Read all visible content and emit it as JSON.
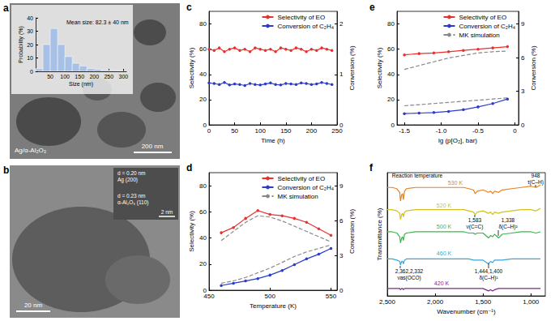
{
  "chart_data": [
    {
      "type": "histogram",
      "title": "Mean size: 82.3 ± 40 nm",
      "x_label": "Size (nm)",
      "y_label": "Probability (%)",
      "bins": [
        0,
        25,
        50,
        75,
        100,
        125,
        150,
        175,
        200,
        225,
        250,
        275,
        300
      ],
      "values": [
        2,
        20,
        32,
        20,
        11,
        6,
        4,
        2,
        1.5,
        0.8,
        0.5,
        0.2
      ],
      "color": "#a7c1e6",
      "xlim": [
        0,
        310
      ],
      "ylim": [
        0,
        40
      ],
      "xticks": [
        50,
        100,
        150,
        200,
        250,
        300
      ],
      "yticks": [
        0,
        10,
        20,
        30,
        40
      ],
      "grid": false
    },
    {
      "type": "line",
      "title": "c",
      "x_label": "Time (h)",
      "y_label": "Selectivity (%)",
      "y2_label": "Conversion (%)",
      "x": [
        0,
        10,
        20,
        30,
        40,
        50,
        60,
        70,
        80,
        90,
        100,
        110,
        120,
        130,
        140,
        150,
        160,
        170,
        180,
        190,
        200,
        210,
        220,
        230,
        240
      ],
      "series": [
        {
          "name": "Selectivity of EO",
          "color": "#e8312f",
          "marker": "circle",
          "line_style": "solid",
          "values": [
            60,
            59,
            61,
            58,
            60,
            61,
            59,
            60,
            58,
            61,
            60,
            59,
            60,
            58,
            61,
            60,
            59,
            61,
            60,
            58,
            60,
            59,
            61,
            60,
            59
          ]
        },
        {
          "name": "Conversion of C₂H₄",
          "color": "#2a3cc8",
          "marker": "circle",
          "line_style": "solid",
          "axis": "y2",
          "values": [
            0.83,
            0.82,
            0.8,
            0.84,
            0.79,
            0.81,
            0.8,
            0.78,
            0.82,
            0.8,
            0.79,
            0.81,
            0.83,
            0.8,
            0.79,
            0.82,
            0.81,
            0.8,
            0.83,
            0.82,
            0.8,
            0.81,
            0.84,
            0.82,
            0.8
          ]
        }
      ],
      "xlim": [
        0,
        250
      ],
      "xticks": [
        0,
        50,
        100,
        150,
        200,
        250
      ],
      "ylim": [
        0,
        90
      ],
      "yticks": [
        0,
        20,
        40,
        60,
        80
      ],
      "y2lim": [
        0,
        2.25
      ],
      "y2ticks": [
        0,
        1,
        2
      ],
      "legend": "upper right",
      "grid": false
    },
    {
      "type": "line",
      "title": "d",
      "x_label": "Temperature (K)",
      "y_label": "Selectivity (%)",
      "y2_label": "Conversion (%)",
      "x": [
        460,
        470,
        480,
        490,
        500,
        510,
        520,
        530,
        540,
        550
      ],
      "series": [
        {
          "name": "Selectivity of EO",
          "color": "#e8312f",
          "marker": "circle",
          "line_style": "solid",
          "values": [
            44,
            48,
            55,
            61,
            58,
            57,
            55,
            52,
            47,
            42
          ]
        },
        {
          "name": "Conversion of C₂H₄",
          "color": "#2a3cc8",
          "marker": "circle",
          "line_style": "solid",
          "axis": "y2",
          "values": [
            0.4,
            0.6,
            0.8,
            1.0,
            1.3,
            1.7,
            2.2,
            2.7,
            3.1,
            3.6
          ]
        },
        {
          "name": "MK simulation",
          "color": "#888888",
          "marker": "none",
          "line_style": "dashed",
          "values": [
            38,
            45,
            52,
            57,
            56,
            53,
            49,
            45,
            41,
            37
          ]
        },
        {
          "name": "MK simulation",
          "color": "#888888",
          "marker": "none",
          "line_style": "dashed",
          "axis": "y2",
          "values": [
            0.6,
            0.8,
            1.1,
            1.5,
            1.9,
            2.4,
            2.9,
            3.3,
            3.6,
            3.9
          ]
        }
      ],
      "xlim": [
        450,
        555
      ],
      "xticks": [
        450,
        500,
        550
      ],
      "ylim": [
        0,
        90
      ],
      "yticks": [
        0,
        20,
        40,
        60,
        80
      ],
      "y2lim": [
        0,
        10.125
      ],
      "y2ticks": [
        0,
        3,
        6,
        9
      ],
      "legend": "upper right",
      "grid": false
    },
    {
      "type": "line",
      "title": "e",
      "x_label": "lg (p[O₂], bar)",
      "y_label": "Selectivity (%)",
      "y2_label": "Conversion (%)",
      "x": [
        -1.5,
        -1.3,
        -1.1,
        -0.9,
        -0.7,
        -0.5,
        -0.3,
        -0.1
      ],
      "series": [
        {
          "name": "Selectivity of EO",
          "color": "#e8312f",
          "marker": "circle",
          "line_style": "solid",
          "values": [
            55.5,
            56.5,
            57,
            58,
            59,
            60,
            61,
            62
          ]
        },
        {
          "name": "Conversion of C₂H₄",
          "color": "#2a3cc8",
          "marker": "circle",
          "line_style": "solid",
          "axis": "y2",
          "values": [
            1.0,
            1.05,
            1.1,
            1.2,
            1.35,
            1.6,
            1.9,
            2.3
          ]
        },
        {
          "name": "MK simulation",
          "color": "#888888",
          "marker": "none",
          "line_style": "dashed",
          "values": [
            44,
            47,
            50,
            53,
            55,
            57,
            58,
            58.5
          ]
        },
        {
          "name": "MK simulation",
          "color": "#888888",
          "marker": "none",
          "line_style": "dashed",
          "axis": "y2",
          "values": [
            1.7,
            1.8,
            1.9,
            2.0,
            2.1,
            2.2,
            2.3,
            2.4
          ]
        }
      ],
      "xlim": [
        -1.6,
        0.05
      ],
      "xticks": [
        -1.5,
        {
          "value": -1,
          "label": "-1.0"
        },
        -0.5,
        0
      ],
      "ylim": [
        0,
        90
      ],
      "yticks": [
        0,
        20,
        40,
        60,
        80
      ],
      "y2lim": [
        0,
        10.125
      ],
      "y2ticks": [
        0,
        3,
        6,
        9
      ],
      "legend": "upper right",
      "grid": false
    },
    {
      "type": "line",
      "title": "f",
      "x_label": "Wavenumber (cm⁻¹)",
      "y_label": "Transmittance (%)",
      "x": [
        2500,
        2450,
        2400,
        2370,
        2362,
        2350,
        2340,
        2332,
        2320,
        2300,
        2200,
        2100,
        2000,
        1900,
        1800,
        1700,
        1650,
        1600,
        1583,
        1560,
        1500,
        1444,
        1420,
        1400,
        1380,
        1338,
        1300,
        1200,
        1100,
        1000,
        948,
        900
      ],
      "series": [
        {
          "name": "530 K",
          "color": "#e8821e",
          "marker": "none",
          "line_style": "solid",
          "values": [
            88,
            88,
            87,
            84,
            77,
            82,
            83,
            78,
            85,
            87,
            88,
            88,
            88,
            88,
            88,
            88,
            87,
            86,
            83,
            85,
            86,
            84,
            85,
            83,
            85,
            84,
            86,
            87,
            88,
            89,
            88,
            90
          ]
        },
        {
          "name": "520 K",
          "color": "#d2c21c",
          "marker": "none",
          "line_style": "solid",
          "values": [
            70,
            70,
            69,
            67,
            62,
            66,
            67,
            64,
            68,
            69,
            70,
            70,
            70,
            70,
            70,
            70,
            69,
            68,
            66,
            68,
            69,
            67,
            68,
            66,
            68,
            67,
            68,
            69,
            70,
            70,
            69,
            71
          ]
        },
        {
          "name": "500 K",
          "color": "#3cb54a",
          "marker": "none",
          "line_style": "solid",
          "values": [
            52,
            52,
            51,
            48,
            43,
            47,
            48,
            45,
            50,
            51,
            52,
            52,
            52,
            52,
            52,
            52,
            51,
            51,
            50,
            51,
            51,
            47,
            49,
            48,
            50,
            47,
            50,
            51,
            52,
            52,
            51,
            52
          ]
        },
        {
          "name": "460 K",
          "color": "#3aa6d8",
          "marker": "none",
          "line_style": "solid",
          "values": [
            30,
            30,
            29,
            28,
            25,
            28,
            28,
            26,
            29,
            30,
            30,
            30,
            30,
            30,
            30,
            30,
            30,
            29,
            29,
            29,
            29,
            26,
            28,
            27,
            29,
            29,
            29,
            30,
            30,
            30,
            30,
            30
          ]
        },
        {
          "name": "420 K",
          "color": "#7a2a8a",
          "marker": "none",
          "line_style": "solid",
          "values": [
            6,
            6,
            6,
            6,
            5,
            6,
            6,
            5,
            6,
            6,
            6,
            6,
            6,
            6,
            6,
            6,
            6,
            6,
            6,
            6,
            6,
            4,
            5,
            4,
            5,
            6,
            6,
            6,
            6,
            6,
            6,
            6
          ]
        }
      ],
      "annotations": [
        "Reaction temperature",
        "948\nτ(C–H)",
        "1,583\nν(C=C)",
        "1,338\nδ(C–H)²",
        "2,362,2,332\nνas(OCO)",
        "1,444,1,400\nδ(C–H)¹"
      ],
      "xlim": [
        2500,
        850
      ],
      "xticks": [
        {
          "value": 2500,
          "label": "2,500"
        },
        {
          "value": 2000,
          "label": "2,000"
        },
        {
          "value": 1500,
          "label": "1,500"
        },
        {
          "value": 1000,
          "label": "1,000"
        }
      ],
      "ylim": [
        0,
        100
      ],
      "tick_labels": "x",
      "grid": false
    }
  ],
  "images": [
    {
      "label": "a",
      "caption": "Ag/α-Al₂O₃",
      "scale_bar": "200 nm"
    },
    {
      "label": "b",
      "scale_bar": "20 nm",
      "inset_scale_bar": "2 nm",
      "annotations": [
        "d = 0.20 nm\nAg (200)",
        "d = 0.23 nm\nα-Al₂O₃ (110)"
      ]
    }
  ]
}
